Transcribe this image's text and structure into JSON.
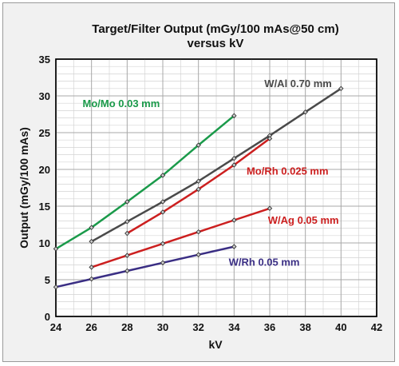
{
  "chart_data": {
    "type": "line",
    "title": "Target/Filter Output (mGy/100 mAs@50 cm)",
    "subtitle": "versus kV",
    "xlabel": "kV",
    "ylabel": "Output (mGy/100 mAs)",
    "xlim": [
      24,
      42
    ],
    "ylim": [
      0,
      35
    ],
    "xticks": [
      24,
      26,
      28,
      30,
      32,
      34,
      36,
      38,
      40,
      42
    ],
    "yticks": [
      0,
      5,
      10,
      15,
      20,
      25,
      30,
      35
    ],
    "grid": true,
    "series": [
      {
        "name": "Mo/Mo 0.03 mm",
        "color": "#1a9a4a",
        "x": [
          24,
          26,
          28,
          30,
          32,
          34
        ],
        "y": [
          9.2,
          12.1,
          15.6,
          19.2,
          23.3,
          27.3
        ],
        "label_pos": [
          25.5,
          28.5
        ]
      },
      {
        "name": "W/Al 0.70 mm",
        "color": "#4a4a4a",
        "x": [
          26,
          28,
          30,
          32,
          34,
          36,
          38,
          40
        ],
        "y": [
          10.2,
          12.9,
          15.6,
          18.4,
          21.5,
          24.6,
          27.8,
          31.0
        ],
        "label_pos": [
          35.7,
          31.2
        ]
      },
      {
        "name": "Mo/Rh 0.025 mm",
        "color": "#cc1f1f",
        "x": [
          28,
          30,
          32,
          34,
          36
        ],
        "y": [
          11.3,
          14.2,
          17.3,
          20.6,
          24.2
        ],
        "label_pos": [
          34.7,
          19.3
        ]
      },
      {
        "name": "W/Ag 0.05 mm",
        "color": "#cc1f1f",
        "x": [
          26,
          28,
          30,
          32,
          34,
          36
        ],
        "y": [
          6.7,
          8.3,
          9.9,
          11.5,
          13.1,
          14.7
        ],
        "label_pos": [
          35.9,
          12.6
        ]
      },
      {
        "name": "W/Rh 0.05 mm",
        "color": "#3a2e84",
        "x": [
          24,
          26,
          28,
          30,
          32,
          34
        ],
        "y": [
          4.0,
          5.1,
          6.2,
          7.3,
          8.4,
          9.5
        ],
        "label_pos": [
          33.7,
          6.9
        ]
      }
    ]
  }
}
